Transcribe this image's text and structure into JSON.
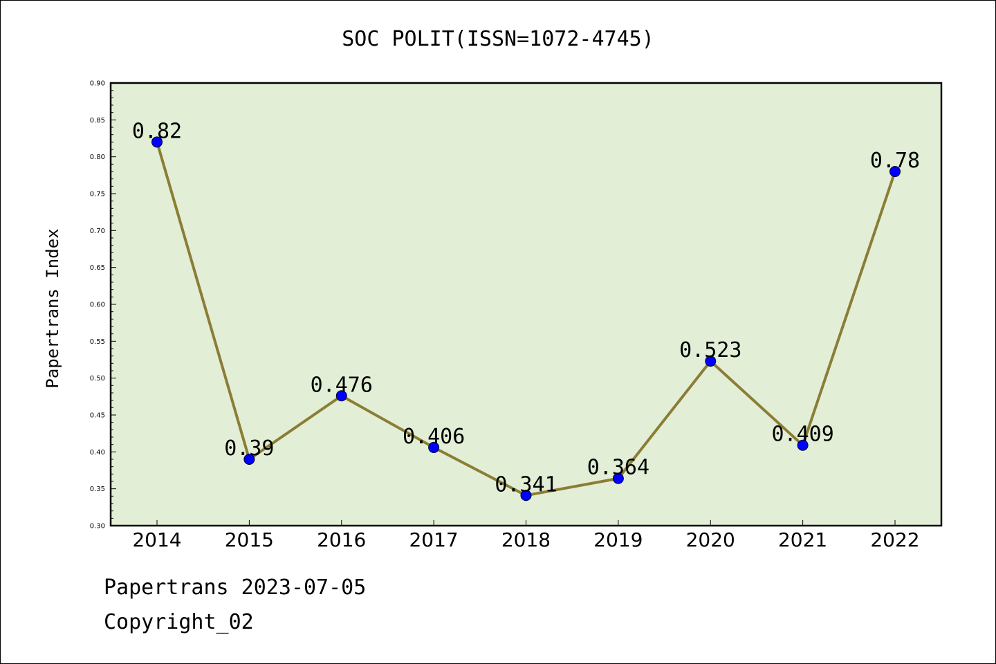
{
  "chart_data": {
    "type": "line",
    "title": "SOC POLIT(ISSN=1072-4745)",
    "xlabel": "",
    "ylabel": "Papertrans Index",
    "categories": [
      "2014",
      "2015",
      "2016",
      "2017",
      "2018",
      "2019",
      "2020",
      "2021",
      "2022"
    ],
    "values": [
      0.82,
      0.39,
      0.476,
      0.406,
      0.341,
      0.364,
      0.523,
      0.409,
      0.78
    ],
    "data_labels": [
      "0.82",
      "0.39",
      "0.476",
      "0.406",
      "0.341",
      "0.364",
      "0.523",
      "0.409",
      "0.78"
    ],
    "ylim": [
      0.3,
      0.9
    ],
    "yticks": [
      "0.30",
      "0.35",
      "0.40",
      "0.45",
      "0.50",
      "0.55",
      "0.60",
      "0.65",
      "0.70",
      "0.75",
      "0.80",
      "0.85",
      "0.90"
    ],
    "grid": false,
    "colors": {
      "plot_background": "#e2efd6",
      "line": "#8b7d36",
      "marker": "#0000ff"
    }
  },
  "footer": {
    "line1": "Papertrans 2023-07-05",
    "line2": "Copyright_02"
  }
}
